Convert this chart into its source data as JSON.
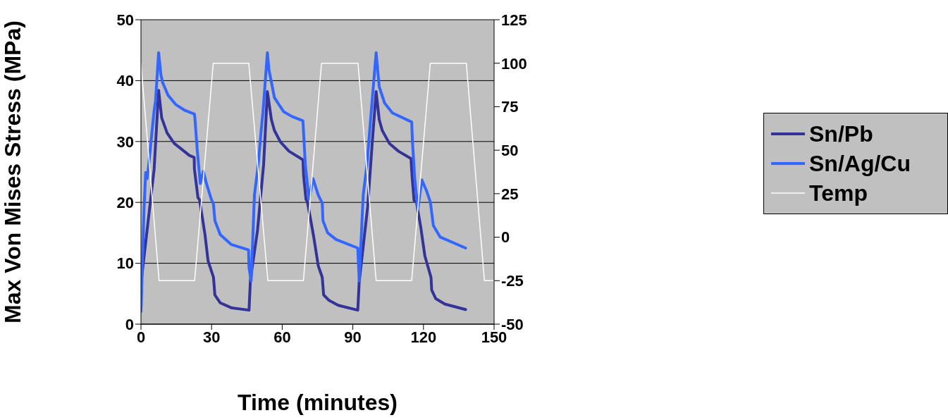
{
  "chart_data": {
    "type": "line",
    "xlabel": "Time (minutes)",
    "ylabel": "Max Von Mises Stress (MPa)",
    "xlim": [
      0,
      150
    ],
    "xticks": [
      0,
      30,
      60,
      90,
      120,
      150
    ],
    "ylim": [
      0,
      50
    ],
    "yticks": [
      0,
      10,
      20,
      30,
      40,
      50
    ],
    "y2lim": [
      -50,
      125
    ],
    "y2ticks": [
      -50,
      -25,
      0,
      25,
      50,
      75,
      100,
      125
    ],
    "grid": "y",
    "legend": "right",
    "marker": "none",
    "line_style": "solid",
    "series": [
      {
        "name": "Sn/Pb",
        "color": "#333399",
        "x": [
          0,
          0.3,
          5.6,
          7.5,
          8.8,
          11.1,
          14.1,
          20.6,
          22.6,
          22.7,
          24.2,
          24.9,
          27.2,
          28.5,
          30.8,
          31.4,
          33.7,
          38.3,
          45.9,
          46.5,
          49.5,
          52.1,
          53.7,
          55.4,
          56.7,
          59.3,
          62.9,
          68.8,
          69.1,
          70.1,
          70.7,
          73.4,
          75.3,
          77.0,
          77.6,
          79.9,
          83.8,
          92.1,
          92.7,
          96.3,
          98.3,
          99.9,
          101.2,
          102.5,
          105.5,
          109.4,
          114.7,
          115.2,
          116.0,
          117.0,
          118.9,
          120.6,
          123.2,
          123.5,
          125.2,
          129.1,
          137.9
        ],
        "values": [
          2.3,
          7.7,
          25.5,
          38.4,
          33.9,
          31.4,
          29.7,
          27.7,
          27.4,
          25.5,
          20.8,
          20.4,
          14.7,
          10.4,
          7.7,
          4.8,
          3.5,
          2.7,
          2.3,
          7.3,
          15.4,
          26.2,
          38.2,
          33.6,
          31.8,
          29.9,
          28.4,
          27.0,
          24.3,
          20.5,
          20.1,
          14.3,
          9.6,
          7.7,
          4.8,
          3.9,
          3.1,
          2.3,
          6.9,
          19.3,
          30.1,
          38.2,
          33.6,
          31.8,
          29.7,
          28.4,
          27.2,
          24.1,
          20.3,
          20.1,
          15.8,
          11.2,
          7.7,
          5.6,
          4.2,
          3.3,
          2.4
        ]
      },
      {
        "name": "Sn/Ag/Cu",
        "color": "#3366ff",
        "x": [
          0,
          1.3,
          2.0,
          2.6,
          3.3,
          4.6,
          5.6,
          6.2,
          7.5,
          8.5,
          9.2,
          11.5,
          14.7,
          18.7,
          22.7,
          22.9,
          23.9,
          25.2,
          26.5,
          27.8,
          29.8,
          30.8,
          31.4,
          33.7,
          38.3,
          45.7,
          45.9,
          46.8,
          48.2,
          49.8,
          51.1,
          51.8,
          53.7,
          54.4,
          56.7,
          60.6,
          64.2,
          68.8,
          69.8,
          71.4,
          73.1,
          75.3,
          77.0,
          77.3,
          79.3,
          82.9,
          92.1,
          92.7,
          94.4,
          96.0,
          97.6,
          99.9,
          101.2,
          103.5,
          106.8,
          115.0,
          115.3,
          116.3,
          117.6,
          119.3,
          121.2,
          122.9,
          124.2,
          127.1,
          137.9
        ],
        "values": [
          2.1,
          18.9,
          24.9,
          23.9,
          26.2,
          31.3,
          35.1,
          36.7,
          44.6,
          40.9,
          39.7,
          37.6,
          36.1,
          35.1,
          34.5,
          33.9,
          28.6,
          23.1,
          25.1,
          23.1,
          20.6,
          19.7,
          17.0,
          14.7,
          13.1,
          12.2,
          9.3,
          7.1,
          21.2,
          26.2,
          32.0,
          34.7,
          44.6,
          41.7,
          37.2,
          34.9,
          34.1,
          33.4,
          26.2,
          20.5,
          23.9,
          21.2,
          19.9,
          17.0,
          15.0,
          13.9,
          12.5,
          7.1,
          21.2,
          26.2,
          33.9,
          44.6,
          39.0,
          36.3,
          34.7,
          33.2,
          30.1,
          23.9,
          18.9,
          23.7,
          22.0,
          20.1,
          16.2,
          14.3,
          12.5
        ]
      },
      {
        "name": "Temp",
        "color": "#ffffff",
        "axis": "y2",
        "x": [
          0,
          7.7,
          22.8,
          30.7,
          45.8,
          53.9,
          69,
          76.7,
          92.2,
          99.9,
          115,
          122.9,
          138.2,
          145.9,
          150
        ],
        "values": [
          100,
          -25,
          -25,
          100,
          100,
          -25,
          -25,
          100,
          100,
          -25,
          -25,
          100,
          100,
          -25,
          -25
        ]
      }
    ]
  }
}
